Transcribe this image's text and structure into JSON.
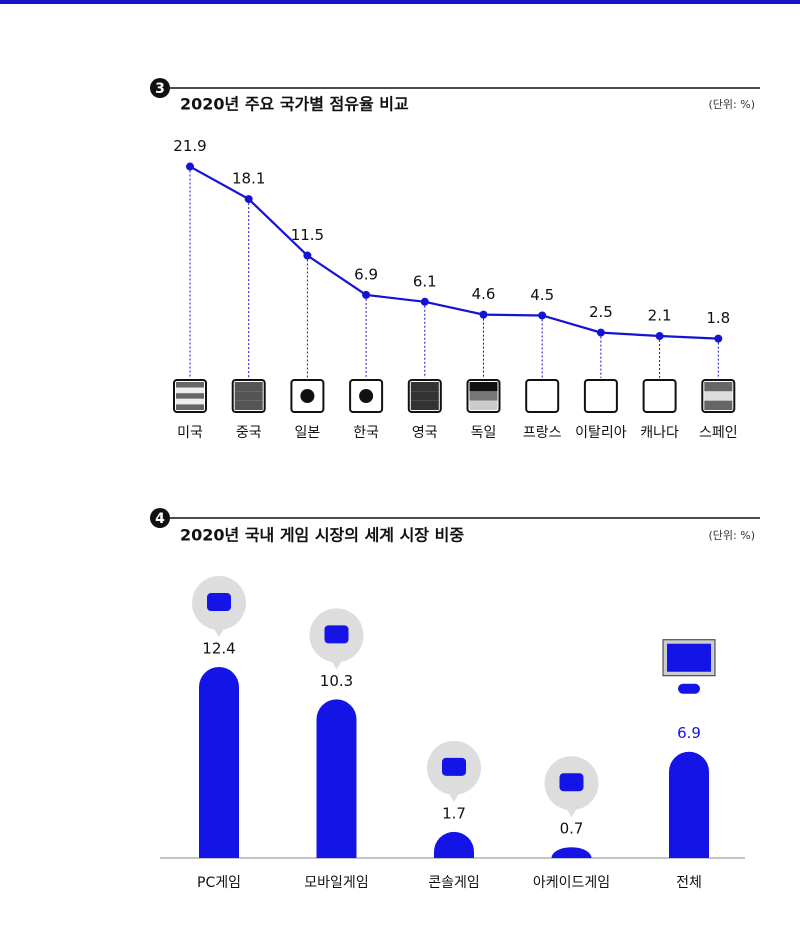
{
  "chart_data": [
    {
      "type": "line",
      "badge": "3",
      "title": "2020년 주요 국가별 점유율 비교",
      "unit_label": "(단위: %)",
      "categories": [
        "미국",
        "중국",
        "일본",
        "한국",
        "영국",
        "독일",
        "프랑스",
        "이탈리아",
        "캐나다",
        "스페인"
      ],
      "values": [
        21.9,
        18.1,
        11.5,
        6.9,
        6.1,
        4.6,
        4.5,
        2.5,
        2.1,
        1.8
      ],
      "color": "#1414d2"
    },
    {
      "type": "bar",
      "badge": "4",
      "title": "2020년 국내 게임 시장의 세계 시장 비중",
      "unit_label": "(단위: %)",
      "categories": [
        "PC게임",
        "모바일게임",
        "콘솔게임",
        "아케이드게임",
        "전체"
      ],
      "values": [
        12.4,
        10.3,
        1.7,
        0.7,
        6.9
      ],
      "color": "#1414e6",
      "value_label_colors": [
        "#111111",
        "#111111",
        "#111111",
        "#111111",
        "#1414e6"
      ]
    }
  ]
}
